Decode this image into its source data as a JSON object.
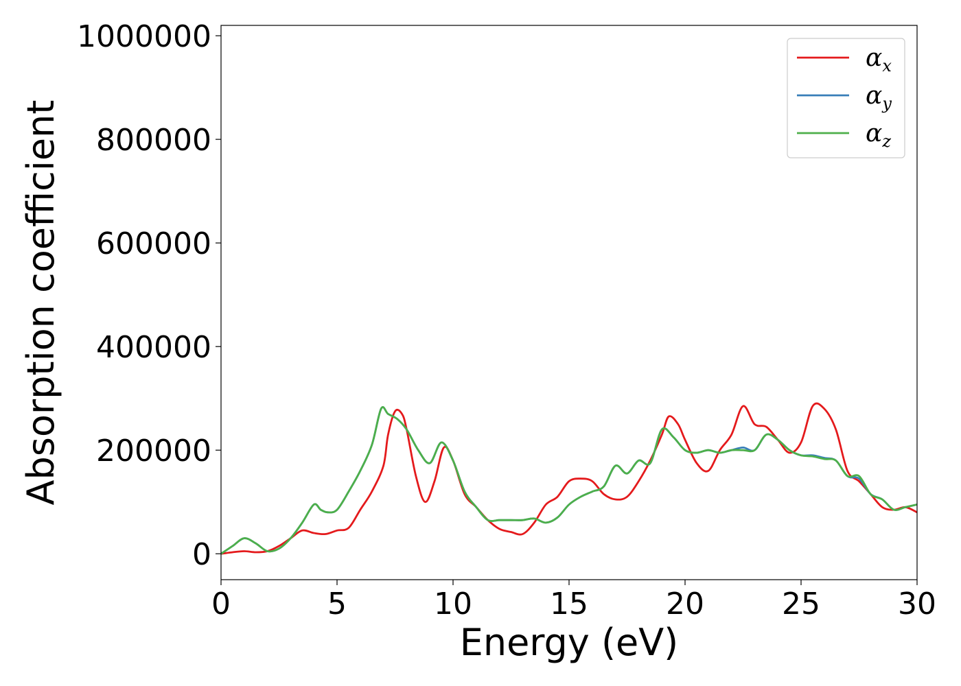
{
  "chart_data": {
    "type": "line",
    "xlabel": "Energy (eV)",
    "ylabel": "Absorption coefficient",
    "xlim": [
      0,
      30
    ],
    "ylim": [
      -50000,
      1020000
    ],
    "xticks": [
      0,
      5,
      10,
      15,
      20,
      25,
      30
    ],
    "yticks": [
      0,
      200000,
      400000,
      600000,
      800000,
      1000000
    ],
    "legend_position": "top-right",
    "grid": false,
    "series": [
      {
        "name": "αx",
        "symbol": "α",
        "subscript": "x",
        "color": "#e41a1c",
        "x": [
          0,
          0.5,
          1,
          1.5,
          2,
          2.5,
          3,
          3.5,
          4,
          4.5,
          5,
          5.5,
          6,
          6.5,
          7,
          7.2,
          7.5,
          7.8,
          8,
          8.4,
          8.8,
          9.2,
          9.6,
          10,
          10.5,
          11,
          11.5,
          12,
          12.5,
          13,
          13.5,
          14,
          14.5,
          15,
          15.5,
          16,
          16.5,
          17,
          17.5,
          18,
          18.5,
          19,
          19.3,
          19.7,
          20,
          20.5,
          21,
          21.5,
          22,
          22.5,
          23,
          23.5,
          24,
          24.5,
          25,
          25.5,
          26,
          26.5,
          27,
          27.5,
          28,
          28.5,
          29,
          29.5,
          30
        ],
        "y": [
          0,
          3000,
          5000,
          3000,
          5000,
          15000,
          30000,
          45000,
          40000,
          38000,
          45000,
          50000,
          85000,
          120000,
          170000,
          230000,
          275000,
          270000,
          240000,
          150000,
          100000,
          140000,
          205000,
          180000,
          115000,
          90000,
          65000,
          48000,
          42000,
          38000,
          60000,
          95000,
          110000,
          140000,
          145000,
          140000,
          115000,
          105000,
          110000,
          140000,
          180000,
          230000,
          265000,
          250000,
          220000,
          175000,
          160000,
          200000,
          230000,
          285000,
          250000,
          245000,
          220000,
          195000,
          215000,
          285000,
          280000,
          240000,
          160000,
          140000,
          115000,
          90000,
          85000,
          90000,
          80000
        ]
      },
      {
        "name": "αy",
        "symbol": "α",
        "subscript": "y",
        "color": "#377eb8",
        "x": [
          0,
          0.5,
          1,
          1.5,
          2,
          2.5,
          3,
          3.5,
          4,
          4.3,
          4.6,
          5,
          5.5,
          6,
          6.5,
          6.9,
          7.2,
          7.6,
          8,
          8.5,
          9,
          9.5,
          10,
          10.5,
          11,
          11.5,
          12,
          12.5,
          13,
          13.5,
          14,
          14.5,
          15,
          15.5,
          16,
          16.5,
          17,
          17.5,
          18,
          18.5,
          19,
          19.5,
          20,
          20.5,
          21,
          21.5,
          22,
          22.5,
          23,
          23.5,
          24,
          24.5,
          25,
          25.5,
          26,
          26.5,
          27,
          27.5,
          28,
          28.5,
          29,
          29.5,
          30
        ],
        "y": [
          0,
          15000,
          30000,
          20000,
          5000,
          10000,
          30000,
          60000,
          95000,
          85000,
          80000,
          85000,
          120000,
          160000,
          210000,
          280000,
          270000,
          260000,
          240000,
          200000,
          175000,
          215000,
          180000,
          120000,
          90000,
          65000,
          65000,
          65000,
          65000,
          68000,
          60000,
          70000,
          95000,
          110000,
          120000,
          130000,
          170000,
          155000,
          180000,
          175000,
          240000,
          225000,
          200000,
          195000,
          200000,
          195000,
          200000,
          205000,
          200000,
          230000,
          220000,
          200000,
          190000,
          190000,
          185000,
          180000,
          150000,
          145000,
          115000,
          105000,
          85000,
          90000,
          95000
        ]
      },
      {
        "name": "αz",
        "symbol": "α",
        "subscript": "z",
        "color": "#4daf4a",
        "x": [
          0,
          0.5,
          1,
          1.5,
          2,
          2.5,
          3,
          3.5,
          4,
          4.3,
          4.6,
          5,
          5.5,
          6,
          6.5,
          6.9,
          7.2,
          7.6,
          8,
          8.5,
          9,
          9.5,
          10,
          10.5,
          11,
          11.5,
          12,
          12.5,
          13,
          13.5,
          14,
          14.5,
          15,
          15.5,
          16,
          16.5,
          17,
          17.5,
          18,
          18.5,
          19,
          19.5,
          20,
          20.5,
          21,
          21.5,
          22,
          22.5,
          23,
          23.5,
          24,
          24.5,
          25,
          25.5,
          26,
          26.5,
          27,
          27.5,
          28,
          28.5,
          29,
          29.5,
          30
        ],
        "y": [
          0,
          15000,
          30000,
          20000,
          5000,
          10000,
          30000,
          60000,
          95000,
          85000,
          80000,
          85000,
          120000,
          160000,
          210000,
          280000,
          270000,
          260000,
          240000,
          200000,
          175000,
          215000,
          180000,
          120000,
          90000,
          65000,
          65000,
          65000,
          65000,
          68000,
          60000,
          70000,
          95000,
          110000,
          120000,
          130000,
          170000,
          155000,
          180000,
          175000,
          240000,
          225000,
          200000,
          195000,
          200000,
          195000,
          200000,
          200000,
          200000,
          230000,
          220000,
          200000,
          190000,
          188000,
          183000,
          180000,
          150000,
          150000,
          115000,
          105000,
          85000,
          90000,
          95000
        ]
      }
    ]
  }
}
